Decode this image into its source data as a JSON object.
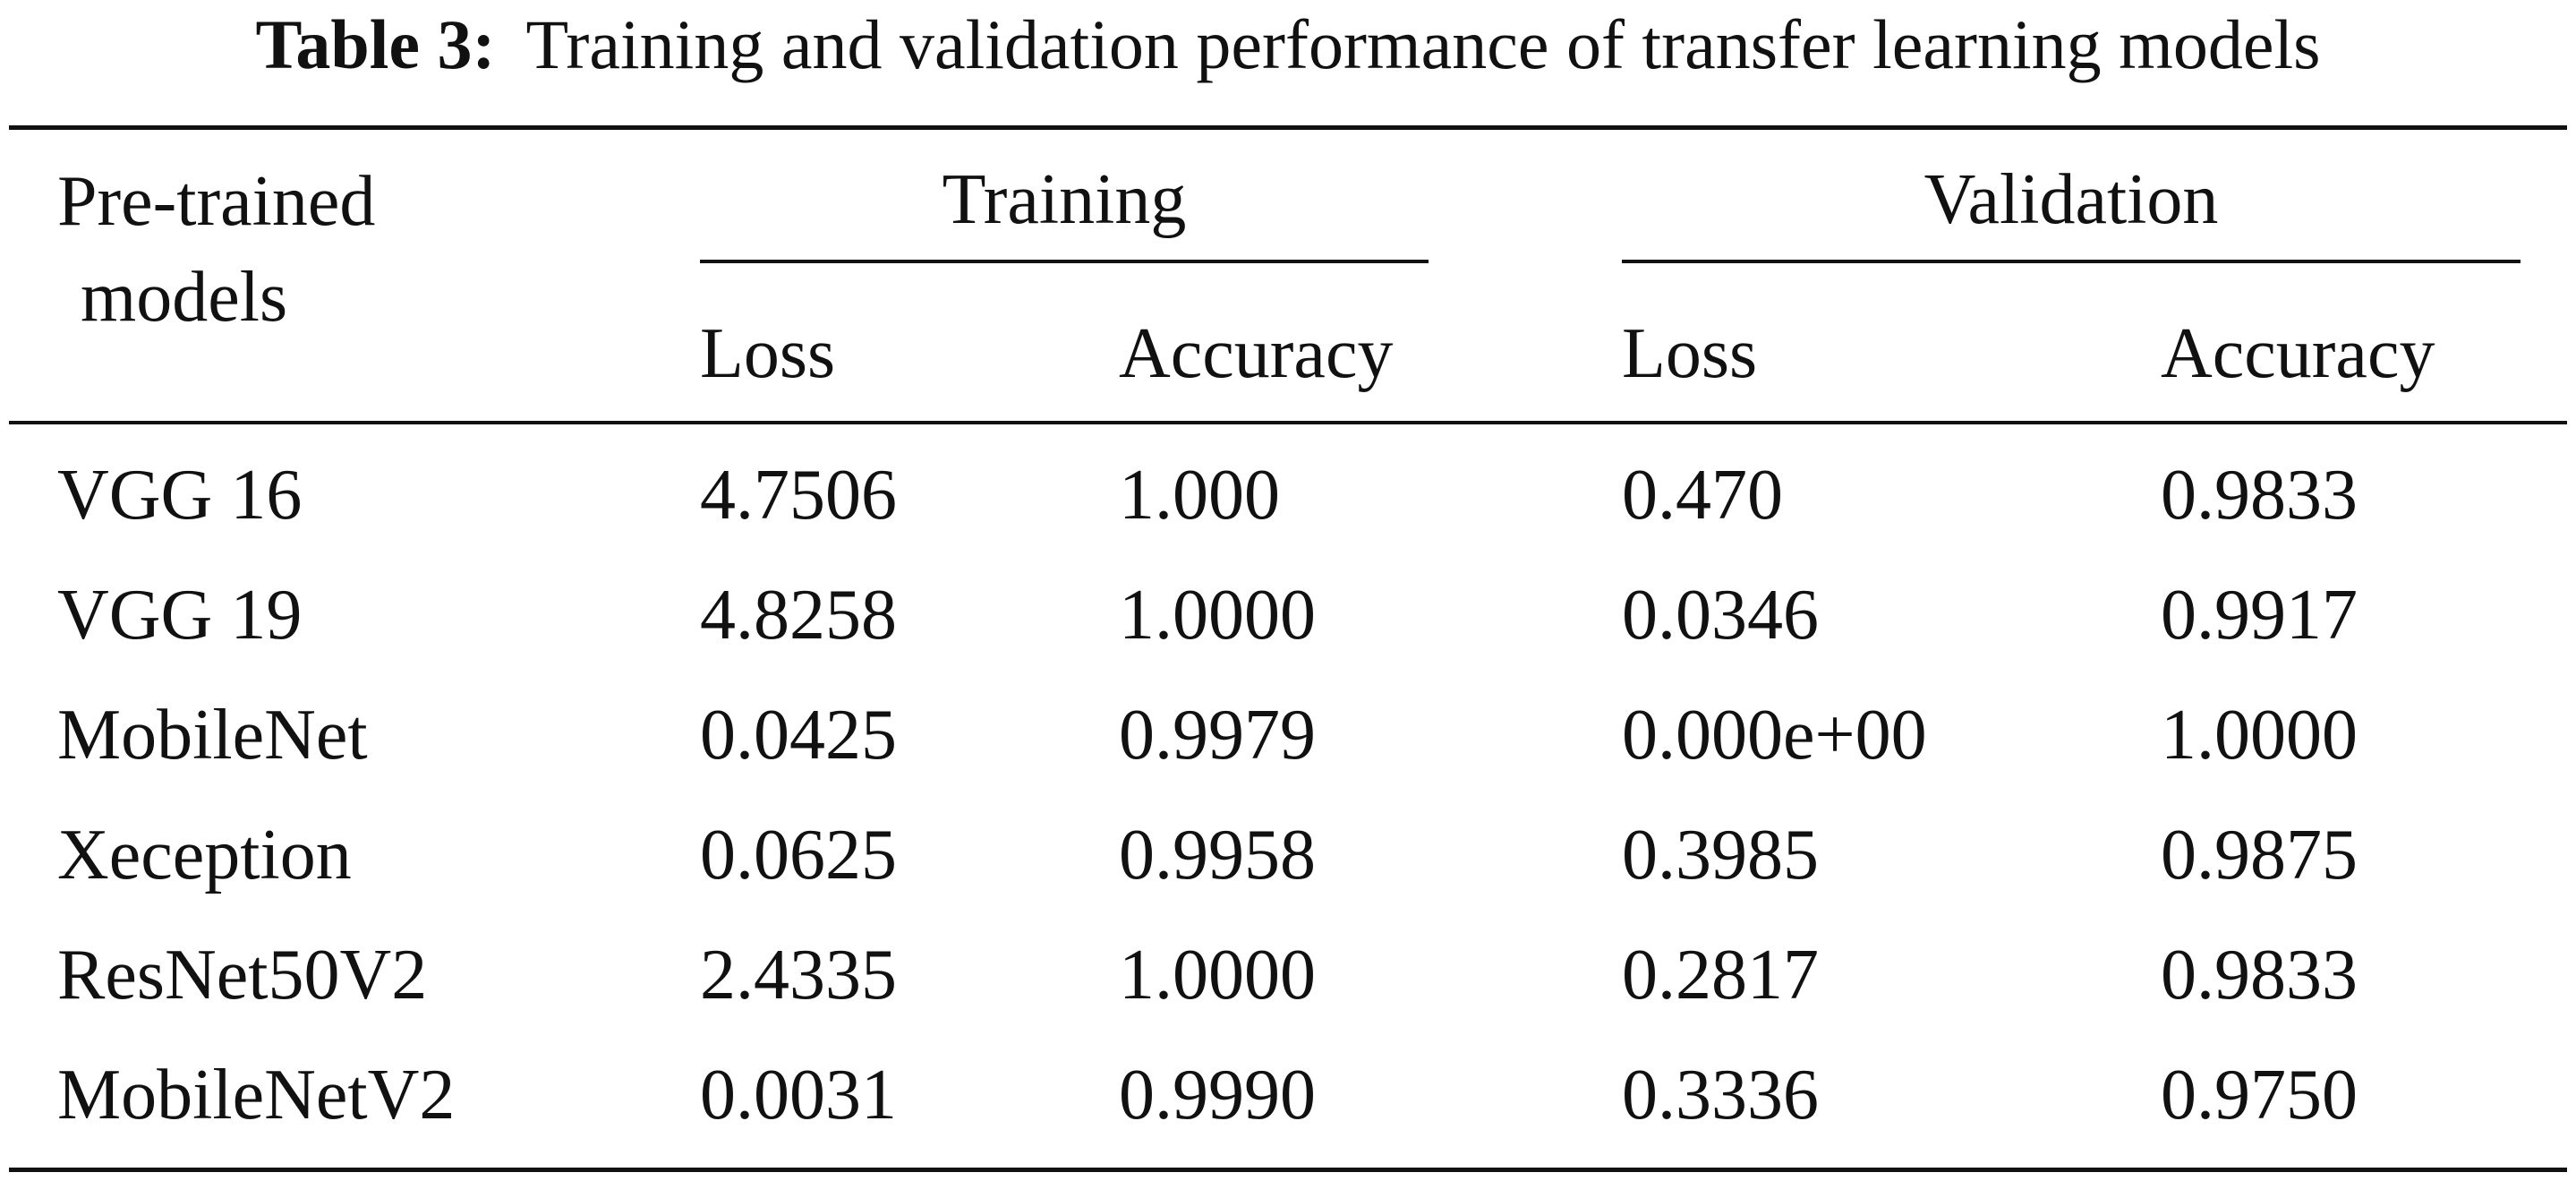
{
  "caption": {
    "label": "Table 3:",
    "text": "Training and validation performance of transfer learning models"
  },
  "header": {
    "model_col_line1": "Pre-trained",
    "model_col_line2": "models",
    "group_training": "Training",
    "group_validation": "Validation",
    "sub": [
      "Loss",
      "Accuracy",
      "Loss",
      "Accuracy"
    ]
  },
  "rows": [
    {
      "model": "VGG 16",
      "train_loss": "4.7506",
      "train_acc": "1.000",
      "val_loss": "0.470",
      "val_acc": "0.9833"
    },
    {
      "model": "VGG 19",
      "train_loss": "4.8258",
      "train_acc": "1.0000",
      "val_loss": "0.0346",
      "val_acc": "0.9917"
    },
    {
      "model": "MobileNet",
      "train_loss": "0.0425",
      "train_acc": "0.9979",
      "val_loss": "0.000e+00",
      "val_acc": "1.0000"
    },
    {
      "model": "Xeception",
      "train_loss": "0.0625",
      "train_acc": "0.9958",
      "val_loss": "0.3985",
      "val_acc": "0.9875"
    },
    {
      "model": "ResNet50V2",
      "train_loss": "2.4335",
      "train_acc": "1.0000",
      "val_loss": "0.2817",
      "val_acc": "0.9833"
    },
    {
      "model": "MobileNetV2",
      "train_loss": "0.0031",
      "train_acc": "0.9990",
      "val_loss": "0.3336",
      "val_acc": "0.9750"
    }
  ]
}
